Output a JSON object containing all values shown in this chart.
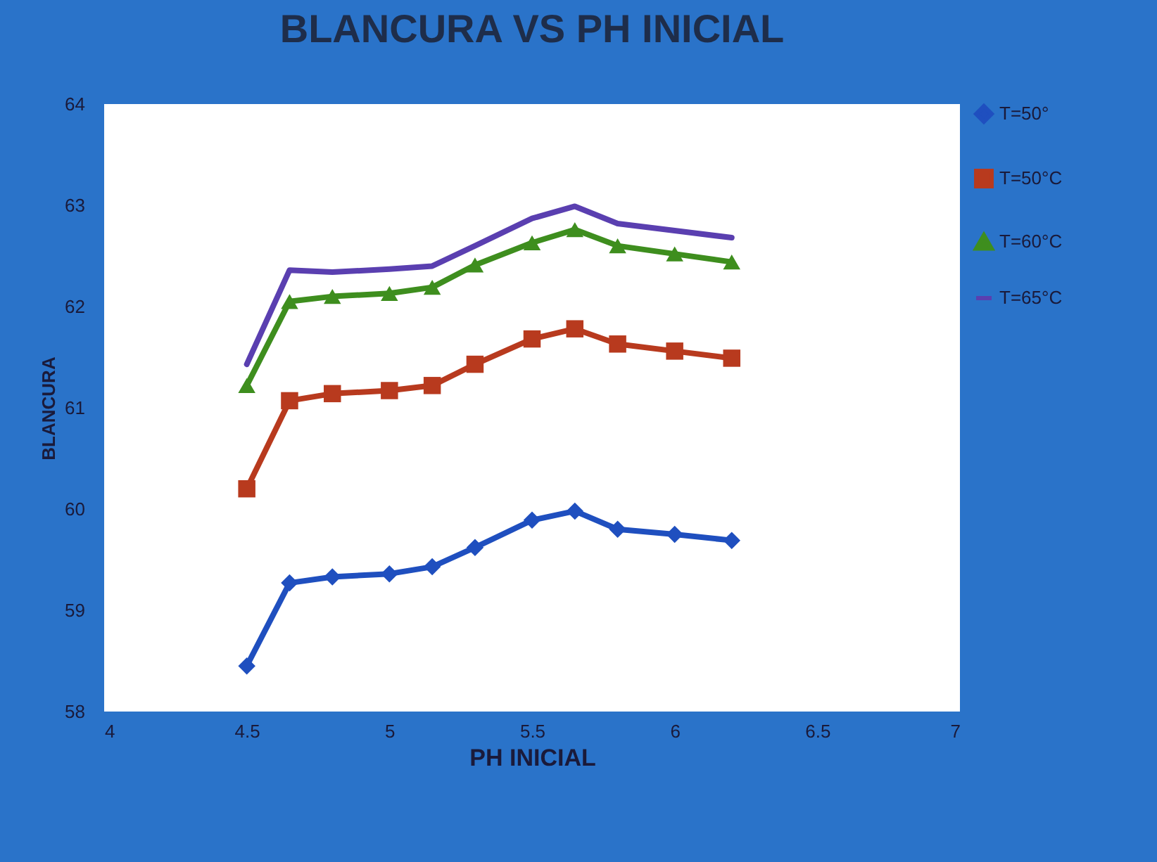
{
  "chart_data": {
    "type": "line",
    "title": "BLANCURA VS PH INICIAL",
    "xlabel": "PH INICIAL",
    "ylabel": "BLANCURA",
    "x": [
      4.5,
      4.65,
      4.8,
      5.0,
      5.15,
      5.3,
      5.5,
      5.65,
      5.8,
      6.0,
      6.2
    ],
    "xlim": [
      4,
      7
    ],
    "xticks": [
      4,
      4.5,
      5,
      5.5,
      6,
      6.5,
      7
    ],
    "ylim": [
      58,
      64
    ],
    "yticks": [
      58,
      59,
      60,
      61,
      62,
      63,
      64
    ],
    "grid": false,
    "legend": "right",
    "series": [
      {
        "name": "T=50°",
        "color": "#1f4fbf",
        "marker": "diamond",
        "values": [
          58.45,
          59.27,
          59.33,
          59.36,
          59.43,
          59.62,
          59.89,
          59.98,
          59.8,
          59.75,
          59.69
        ]
      },
      {
        "name": "T=50°C",
        "color": "#b83a1e",
        "marker": "square",
        "values": [
          60.2,
          61.07,
          61.14,
          61.17,
          61.22,
          61.43,
          61.68,
          61.78,
          61.63,
          61.56,
          61.49
        ]
      },
      {
        "name": "T=60°C",
        "color": "#3e8e1e",
        "marker": "triangle",
        "values": [
          61.22,
          62.05,
          62.1,
          62.13,
          62.19,
          62.41,
          62.63,
          62.76,
          62.6,
          62.52,
          62.44
        ]
      },
      {
        "name": "T=65°C",
        "color": "#5a3fb0",
        "marker": "none",
        "values": [
          61.43,
          62.36,
          62.34,
          62.37,
          62.4,
          62.6,
          62.87,
          62.99,
          62.82,
          62.75,
          62.68
        ]
      }
    ]
  }
}
